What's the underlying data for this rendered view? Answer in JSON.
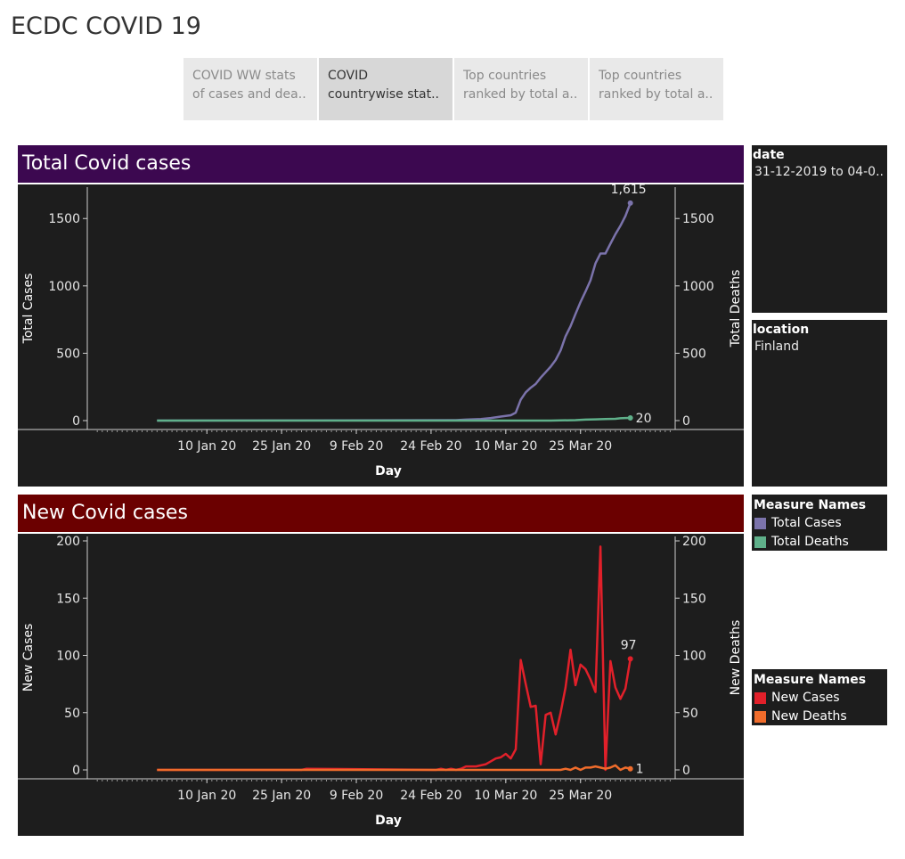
{
  "page": {
    "title": "ECDC COVID 19"
  },
  "tabs": [
    {
      "line1": "COVID WW stats",
      "line2": "of cases and dea.."
    },
    {
      "line1": "COVID",
      "line2": "countrywise stat.."
    },
    {
      "line1": "Top countries",
      "line2": "ranked by total a.."
    },
    {
      "line1": "Top countries",
      "line2": "ranked by total a.."
    }
  ],
  "filters": {
    "date": {
      "title": "date",
      "value": "31-12-2019 to 04-0.."
    },
    "location": {
      "title": "location",
      "value": "Finland"
    }
  },
  "legends": [
    {
      "title": "Measure Names",
      "items": [
        {
          "label": "Total Cases",
          "color": "#7b73ab"
        },
        {
          "label": "Total Deaths",
          "color": "#5fb08a"
        }
      ]
    },
    {
      "title": "Measure Names",
      "items": [
        {
          "label": "New Cases",
          "color": "#e1202a"
        },
        {
          "label": "New Deaths",
          "color": "#f06c2b"
        }
      ]
    }
  ],
  "chart_data": [
    {
      "type": "line",
      "title": "Total Covid cases",
      "banner_color": "#3c0850",
      "xlabel": "Day",
      "ylabel": "Total Cases",
      "y2label": "Total Deaths",
      "x_ticks": [
        "10 Jan 20",
        "25 Jan 20",
        "9 Feb 20",
        "24 Feb 20",
        "10 Mar 20",
        "25 Mar 20"
      ],
      "x_range": [
        "2019-12-31",
        "2020-04-04"
      ],
      "ylim": [
        0,
        1700
      ],
      "y_ticks": [
        0,
        500,
        1000,
        1500
      ],
      "y2lim": [
        0,
        1700
      ],
      "y2_ticks": [
        0,
        500,
        1000,
        1500
      ],
      "series": [
        {
          "name": "Total Cases",
          "color": "#7b73ab",
          "end_label": "1,615",
          "x": [
            "2019-12-31",
            "2020-02-29",
            "2020-03-02",
            "2020-03-05",
            "2020-03-07",
            "2020-03-09",
            "2020-03-11",
            "2020-03-12",
            "2020-03-13",
            "2020-03-14",
            "2020-03-15",
            "2020-03-16",
            "2020-03-17",
            "2020-03-18",
            "2020-03-19",
            "2020-03-20",
            "2020-03-21",
            "2020-03-22",
            "2020-03-23",
            "2020-03-24",
            "2020-03-25",
            "2020-03-26",
            "2020-03-27",
            "2020-03-28",
            "2020-03-29",
            "2020-03-30",
            "2020-03-31",
            "2020-04-01",
            "2020-04-02",
            "2020-04-03",
            "2020-04-04"
          ],
          "y": [
            0,
            3,
            7,
            12,
            19,
            30,
            40,
            59,
            155,
            210,
            244,
            272,
            319,
            359,
            400,
            450,
            521,
            626,
            700,
            792,
            880,
            958,
            1041,
            1167,
            1240,
            1240,
            1313,
            1384,
            1446,
            1518,
            1615
          ]
        },
        {
          "name": "Total Deaths",
          "color": "#5fb08a",
          "end_label": "20",
          "x": [
            "2019-12-31",
            "2020-03-19",
            "2020-03-21",
            "2020-03-24",
            "2020-03-26",
            "2020-03-28",
            "2020-03-30",
            "2020-04-01",
            "2020-04-02",
            "2020-04-03",
            "2020-04-04"
          ],
          "y": [
            0,
            0,
            1,
            3,
            7,
            9,
            11,
            13,
            17,
            19,
            20
          ]
        }
      ]
    },
    {
      "type": "line",
      "title": "New Covid cases",
      "banner_color": "#6b0000",
      "xlabel": "Day",
      "ylabel": "New Cases",
      "y2label": "New Deaths",
      "x_ticks": [
        "10 Jan 20",
        "25 Jan 20",
        "9 Feb 20",
        "24 Feb 20",
        "10 Mar 20",
        "25 Mar 20"
      ],
      "x_range": [
        "2019-12-31",
        "2020-04-04"
      ],
      "ylim": [
        0,
        200
      ],
      "y_ticks": [
        0,
        50,
        100,
        150,
        200
      ],
      "y2lim": [
        0,
        200
      ],
      "y2_ticks": [
        0,
        50,
        100,
        150,
        200
      ],
      "series": [
        {
          "name": "New Cases",
          "color": "#e1202a",
          "end_label": "97",
          "x": [
            "2019-12-31",
            "2020-01-29",
            "2020-01-30",
            "2020-02-25",
            "2020-02-26",
            "2020-02-27",
            "2020-02-28",
            "2020-02-29",
            "2020-03-01",
            "2020-03-02",
            "2020-03-04",
            "2020-03-06",
            "2020-03-08",
            "2020-03-09",
            "2020-03-10",
            "2020-03-11",
            "2020-03-12",
            "2020-03-13",
            "2020-03-14",
            "2020-03-15",
            "2020-03-16",
            "2020-03-17",
            "2020-03-18",
            "2020-03-19",
            "2020-03-20",
            "2020-03-21",
            "2020-03-22",
            "2020-03-23",
            "2020-03-24",
            "2020-03-25",
            "2020-03-26",
            "2020-03-27",
            "2020-03-28",
            "2020-03-29",
            "2020-03-30",
            "2020-03-31",
            "2020-04-01",
            "2020-04-02",
            "2020-04-03",
            "2020-04-04"
          ],
          "y": [
            0,
            0,
            1,
            0,
            1,
            0,
            1,
            0,
            1,
            3,
            3,
            5,
            10,
            11,
            14,
            10,
            18,
            96,
            75,
            55,
            56,
            5,
            48,
            50,
            31,
            50,
            72,
            105,
            74,
            92,
            88,
            79,
            68,
            195,
            0,
            95,
            72,
            62,
            71,
            97
          ]
        },
        {
          "name": "New Deaths",
          "color": "#f06c2b",
          "end_label": "1",
          "x": [
            "2019-12-31",
            "2020-03-21",
            "2020-03-22",
            "2020-03-23",
            "2020-03-24",
            "2020-03-25",
            "2020-03-26",
            "2020-03-27",
            "2020-03-28",
            "2020-03-29",
            "2020-03-30",
            "2020-03-31",
            "2020-04-01",
            "2020-04-02",
            "2020-04-03",
            "2020-04-04"
          ],
          "y": [
            0,
            0,
            1,
            0,
            2,
            0,
            2,
            2,
            3,
            2,
            1,
            2,
            4,
            0,
            2,
            1
          ]
        }
      ]
    }
  ]
}
